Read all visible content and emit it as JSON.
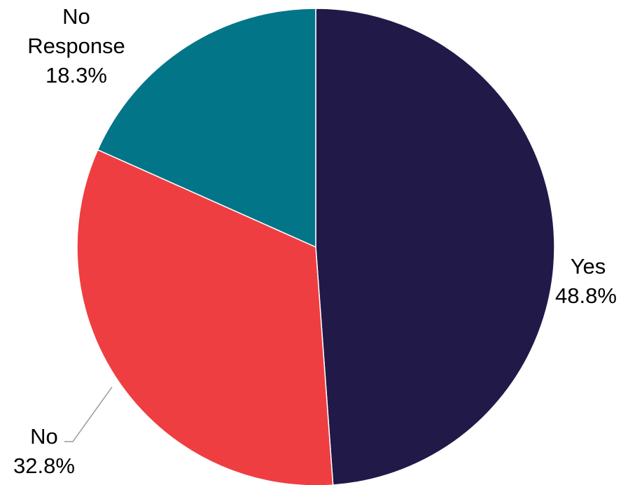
{
  "chart_data": {
    "type": "pie",
    "title": "",
    "slices": [
      {
        "label": "Yes",
        "value": 48.8,
        "value_label": "48.8%",
        "color": "#211a48"
      },
      {
        "label": "No",
        "value": 32.8,
        "value_label": "32.8%",
        "color": "#ef3e41"
      },
      {
        "label": "No Response",
        "value": 18.3,
        "value_label": "18.3%",
        "color": "#037589"
      }
    ],
    "start_angle_deg": 0,
    "direction": "clockwise",
    "legend": "none",
    "labels": "outside"
  }
}
